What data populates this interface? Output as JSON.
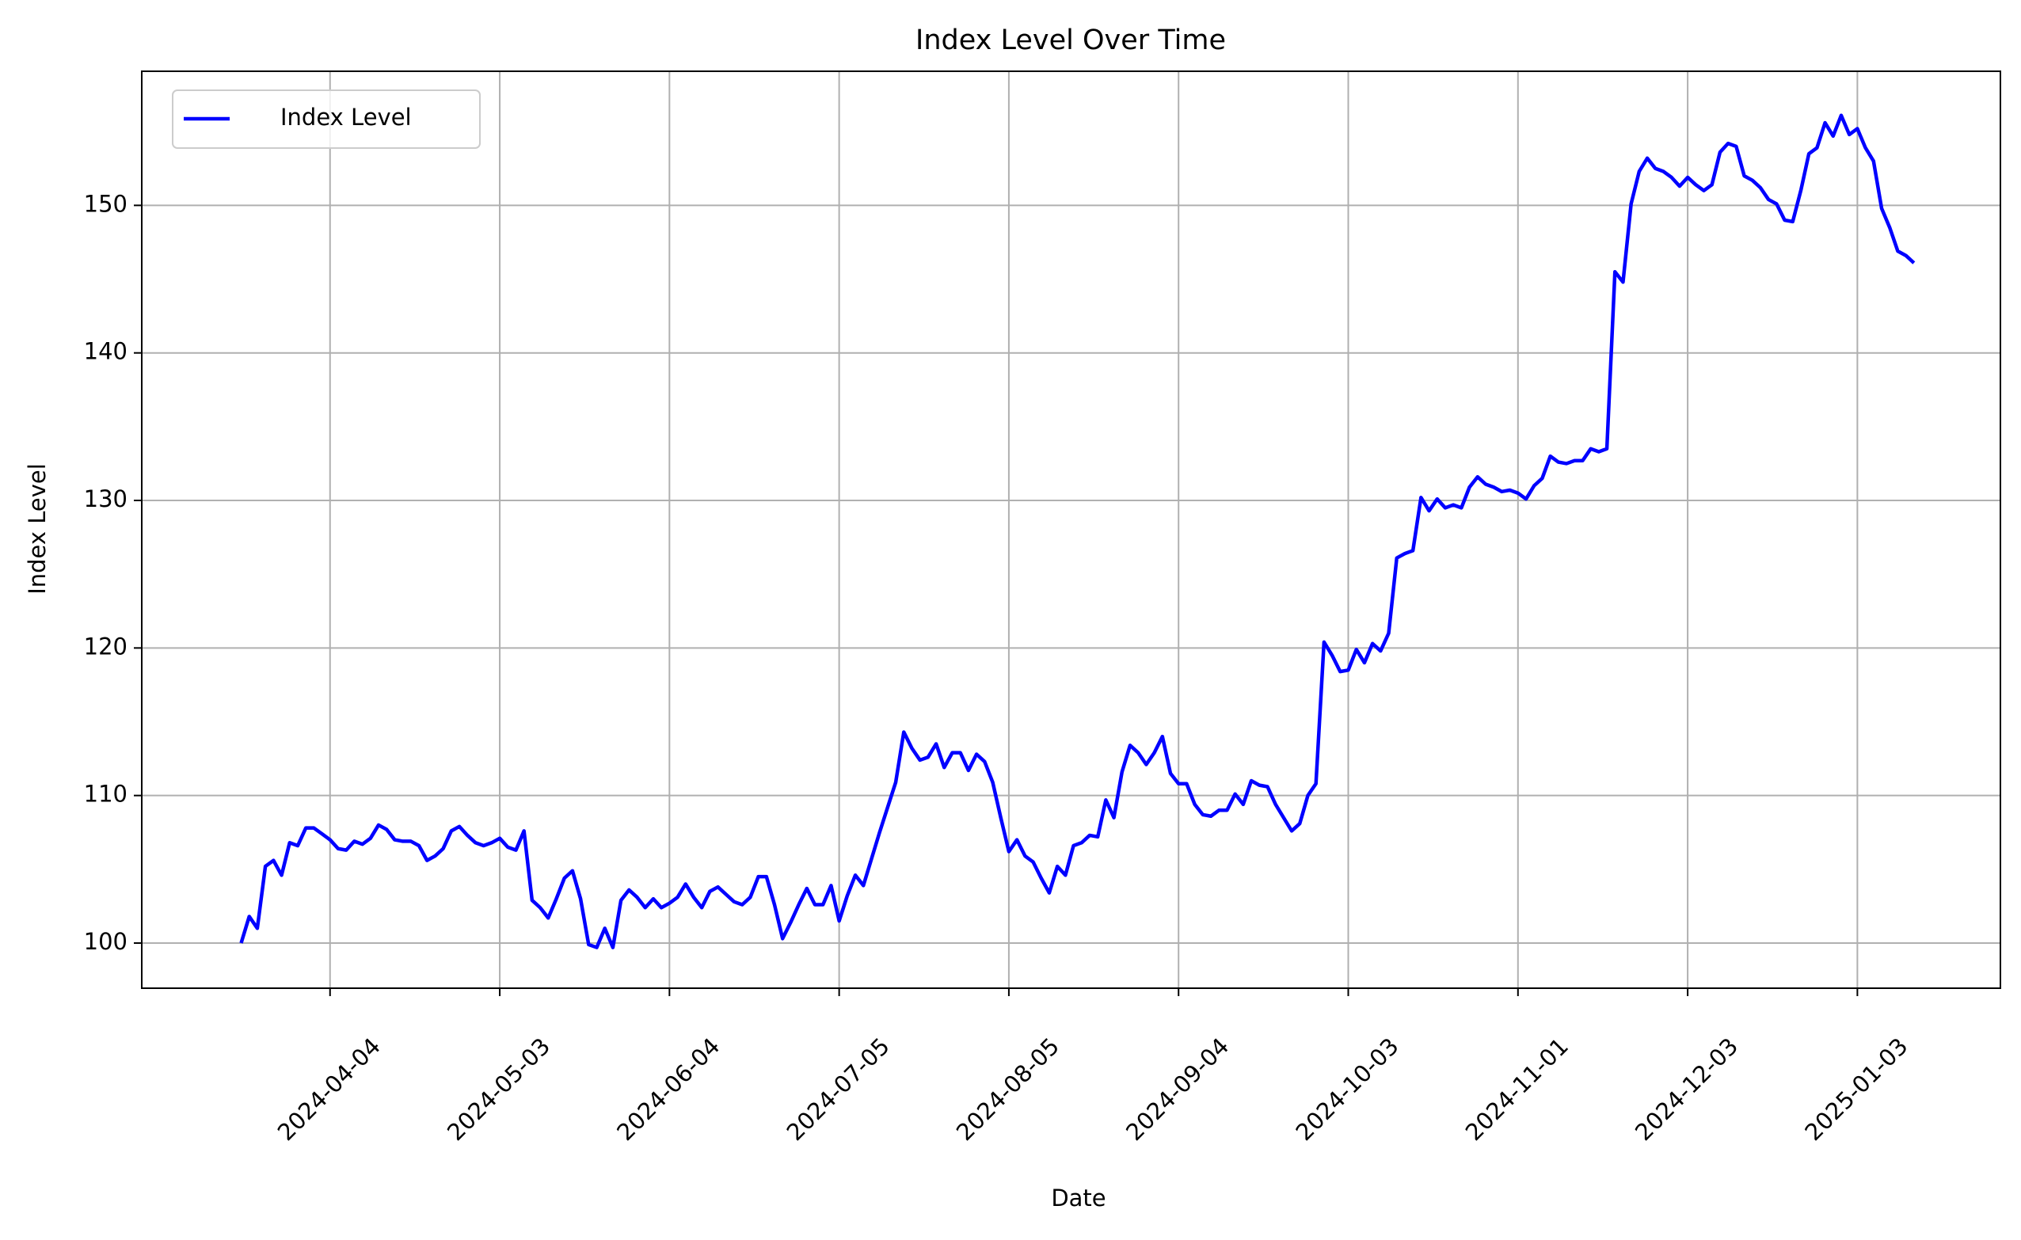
{
  "chart_data": {
    "type": "line",
    "title": "Index Level Over Time",
    "x_label": "Date",
    "y_label": "Index Level",
    "categories": [
      null,
      null,
      null,
      null,
      null,
      null,
      null,
      null,
      null,
      null,
      null,
      "2024-04-04",
      null,
      null,
      null,
      null,
      null,
      null,
      null,
      null,
      null,
      null,
      null,
      null,
      null,
      null,
      null,
      null,
      null,
      null,
      null,
      null,
      "2024-05-03",
      null,
      null,
      null,
      null,
      null,
      null,
      null,
      null,
      null,
      null,
      null,
      null,
      null,
      null,
      null,
      null,
      null,
      null,
      null,
      null,
      "2024-06-04",
      null,
      null,
      null,
      null,
      null,
      null,
      null,
      null,
      null,
      null,
      null,
      null,
      null,
      null,
      null,
      null,
      null,
      null,
      null,
      null,
      "2024-07-05",
      null,
      null,
      null,
      null,
      null,
      null,
      null,
      null,
      null,
      null,
      null,
      null,
      null,
      null,
      null,
      null,
      null,
      null,
      null,
      null,
      "2024-08-05",
      null,
      null,
      null,
      null,
      null,
      null,
      null,
      null,
      null,
      null,
      null,
      null,
      null,
      null,
      null,
      null,
      null,
      null,
      null,
      null,
      "2024-09-04",
      null,
      null,
      null,
      null,
      null,
      null,
      null,
      null,
      null,
      null,
      null,
      null,
      null,
      null,
      null,
      null,
      null,
      null,
      null,
      null,
      "2024-10-03",
      null,
      null,
      null,
      null,
      null,
      null,
      null,
      null,
      null,
      null,
      null,
      null,
      null,
      null,
      null,
      null,
      null,
      null,
      null,
      null,
      "2024-11-01",
      null,
      null,
      null,
      null,
      null,
      null,
      null,
      null,
      null,
      null,
      null,
      null,
      null,
      null,
      null,
      null,
      null,
      null,
      null,
      null,
      "2024-12-03",
      null,
      null,
      null,
      null,
      null,
      null,
      null,
      null,
      null,
      null,
      null,
      null,
      null,
      null,
      null,
      null,
      null,
      null,
      null,
      null,
      "2025-01-03",
      null,
      null,
      null,
      null,
      null,
      null,
      null
    ],
    "series": [
      {
        "name": "Index Level",
        "color": "#0000ff",
        "values": [
          100.0,
          101.8,
          101.0,
          105.2,
          105.6,
          104.6,
          106.8,
          106.6,
          107.8,
          107.8,
          107.4,
          107.0,
          106.4,
          106.3,
          106.9,
          106.7,
          107.1,
          108.0,
          107.7,
          107.0,
          106.9,
          106.9,
          106.6,
          105.6,
          105.9,
          106.4,
          107.6,
          107.9,
          107.3,
          106.8,
          106.6,
          106.8,
          107.1,
          106.5,
          106.3,
          107.6,
          102.9,
          102.4,
          101.7,
          103.0,
          104.4,
          104.9,
          103.0,
          99.9,
          99.7,
          101.0,
          99.7,
          102.9,
          103.6,
          103.1,
          102.4,
          103.0,
          102.4,
          102.7,
          103.1,
          104.0,
          103.1,
          102.4,
          103.5,
          103.8,
          103.3,
          102.8,
          102.6,
          103.1,
          104.5,
          104.5,
          102.6,
          100.3,
          101.4,
          102.6,
          103.7,
          102.6,
          102.6,
          103.9,
          101.5,
          103.2,
          104.6,
          103.9,
          105.7,
          107.5,
          109.2,
          110.9,
          114.3,
          113.2,
          112.4,
          112.6,
          113.5,
          111.9,
          112.9,
          112.9,
          111.7,
          112.8,
          112.3,
          110.9,
          108.5,
          106.2,
          107.0,
          105.9,
          105.5,
          104.4,
          103.4,
          105.2,
          104.6,
          106.6,
          106.8,
          107.3,
          107.2,
          109.7,
          108.5,
          111.6,
          113.4,
          112.9,
          112.1,
          112.9,
          114.0,
          111.5,
          110.8,
          110.8,
          109.4,
          108.7,
          108.6,
          109.0,
          109.0,
          110.1,
          109.4,
          111.0,
          110.7,
          110.6,
          109.4,
          108.5,
          107.6,
          108.1,
          110.0,
          110.8,
          120.4,
          119.5,
          118.4,
          118.5,
          119.9,
          119.0,
          120.3,
          119.8,
          121.0,
          126.1,
          126.4,
          126.6,
          130.2,
          129.3,
          130.1,
          129.5,
          129.7,
          129.5,
          130.9,
          131.6,
          131.1,
          130.9,
          130.6,
          130.7,
          130.5,
          130.1,
          131.0,
          131.5,
          133.0,
          132.6,
          132.5,
          132.7,
          132.7,
          133.5,
          133.3,
          133.5,
          145.5,
          144.8,
          150.1,
          152.3,
          153.2,
          152.5,
          152.3,
          151.9,
          151.3,
          151.9,
          151.4,
          151.0,
          151.4,
          153.6,
          154.2,
          154.0,
          152.0,
          151.7,
          151.2,
          150.4,
          150.1,
          149.0,
          148.9,
          151.0,
          153.5,
          153.9,
          155.6,
          154.7,
          156.1,
          154.8,
          155.2,
          153.9,
          153.0,
          149.8,
          148.5,
          146.9,
          146.6,
          146.1
        ]
      }
    ],
    "xlim": [
      -12.3,
      217.7
    ],
    "ylim": [
      96.94,
      159.09
    ],
    "yticks": [
      100,
      110,
      120,
      130,
      140,
      150
    ],
    "grid": true,
    "legend": "upper left"
  }
}
